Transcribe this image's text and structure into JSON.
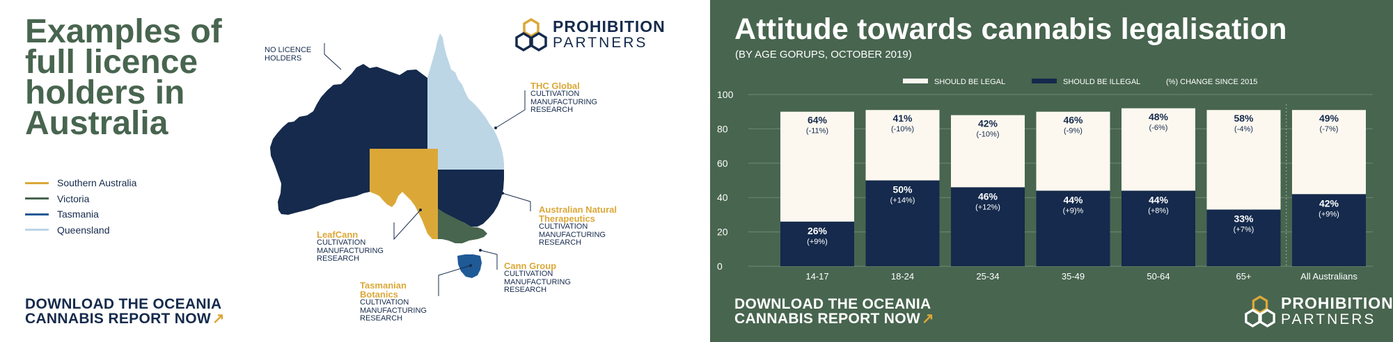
{
  "left_panel": {
    "title": "Examples of full licence holders in Australia",
    "legend": [
      {
        "label": "Southern Australia",
        "color": "#dba838"
      },
      {
        "label": "Victoria",
        "color": "#48654f"
      },
      {
        "label": "Tasmania",
        "color": "#1f5a96"
      },
      {
        "label": "Queensland",
        "color": "#bcd6e6"
      }
    ],
    "no_licence_label": [
      "NO LICENCE",
      "HOLDERS"
    ],
    "annotations": [
      {
        "name": "THC Global",
        "items": [
          "CULTIVATION",
          "MANUFACTURING",
          "RESEARCH"
        ]
      },
      {
        "name": "Australian Natural Therapeutics",
        "name_lines": [
          "Australian Natural",
          "Therapeutics"
        ],
        "items": [
          "CULTIVATION",
          "MANUFACTURING",
          "RESEARCH"
        ]
      },
      {
        "name": "LeafCann",
        "items": [
          "CULTIVATION",
          "MANUFACTURING",
          "RESEARCH"
        ]
      },
      {
        "name": "Cann Group",
        "items": [
          "CULTIVATION",
          "MANUFACTURING",
          "RESEARCH"
        ]
      },
      {
        "name": "Tasmanian Botanics",
        "name_lines": [
          "Tasmanian",
          "Botanics"
        ],
        "items": [
          "CULTIVATION",
          "MANUFACTURING",
          "RESEARCH"
        ]
      }
    ],
    "map_colors": {
      "navy": "#152a4c",
      "light_blue": "#bcd6e6",
      "gold": "#dba838",
      "green": "#48654f",
      "blue": "#1f5a96"
    },
    "cta": {
      "line1": "DOWNLOAD THE OCEANIA",
      "line2": "CANNABIS REPORT NOW",
      "arrow": "↗"
    },
    "logo": {
      "line1": "PROHIBITION",
      "line2": "PARTNERS",
      "icon": "hexagon-cluster-icon"
    }
  },
  "right_panel": {
    "background": "#48654f",
    "cta": {
      "line1": "DOWNLOAD THE OCEANIA",
      "line2": "CANNABIS REPORT NOW",
      "arrow": "↗"
    },
    "logo": {
      "line1": "PROHIBITION",
      "line2": "PARTNERS",
      "icon": "hexagon-cluster-icon"
    }
  },
  "chart_data": {
    "type": "bar",
    "stacked": true,
    "title": "Attitude towards cannabis legalisation",
    "subtitle": "(BY AGE GORUPS, OCTOBER 2019)",
    "categories": [
      "14-17",
      "18-24",
      "25-34",
      "35-49",
      "50-64",
      "65+",
      "All Australians"
    ],
    "series": [
      {
        "name": "SHOULD BE ILLEGAL",
        "color": "#152a4c",
        "label_color": "#ffffff",
        "values": [
          26,
          50,
          46,
          44,
          44,
          33,
          42
        ],
        "changes": [
          "(+9%)",
          "(+14%)",
          "(+12%)",
          "(+9)%",
          "(+8%)",
          "(+7%)",
          "(+9%)"
        ]
      },
      {
        "name": "SHOULD BE LEGAL",
        "color": "#fcf8f0",
        "label_color": "#152a4c",
        "values": [
          64,
          41,
          42,
          46,
          48,
          58,
          49
        ],
        "changes": [
          "(-11%)",
          "(-10%)",
          "(-10%)",
          "(-9%)",
          "(-6%)",
          "(-4%)",
          "(-7%)"
        ]
      }
    ],
    "legend": [
      "SHOULD BE LEGAL",
      "SHOULD BE ILLEGAL",
      "(%)  CHANGE SINCE 2015"
    ],
    "legend_placement": "top-center",
    "ylim": [
      0,
      100
    ],
    "yticks": [
      0,
      20,
      40,
      60,
      80,
      100
    ],
    "grid": true
  }
}
